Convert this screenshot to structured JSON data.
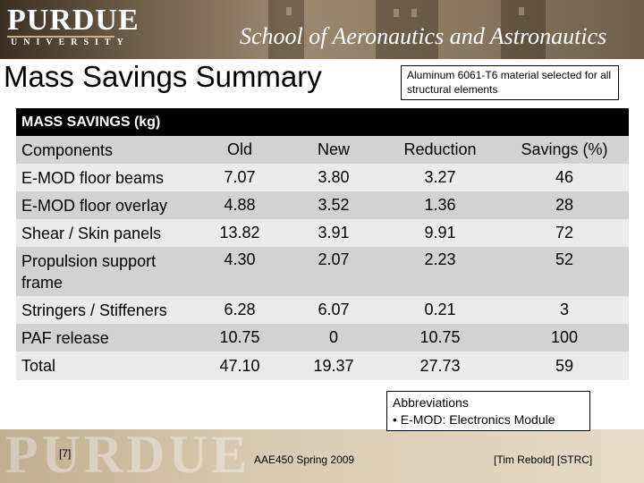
{
  "header": {
    "logo_word": "PURDUE",
    "logo_sub": "UNIVERSITY",
    "school": "School of Aeronautics and Astronautics"
  },
  "title": "Mass Savings Summary",
  "note": "Aluminum 6061-T6 material selected for all structural elements",
  "table": {
    "caption": "MASS SAVINGS (kg)",
    "columns": [
      "Components",
      "Old",
      "New",
      "Reduction",
      "Savings (%)"
    ],
    "rows": [
      [
        "E-MOD floor beams",
        "7.07",
        "3.80",
        "3.27",
        "46"
      ],
      [
        "E-MOD floor overlay",
        "4.88",
        "3.52",
        "1.36",
        "28"
      ],
      [
        "Shear / Skin panels",
        "13.82",
        "3.91",
        "9.91",
        "72"
      ],
      [
        "Propulsion support frame",
        "4.30",
        "2.07",
        "2.23",
        "52"
      ],
      [
        "Stringers / Stiffeners",
        "6.28",
        "6.07",
        "0.21",
        "3"
      ],
      [
        "PAF release",
        "10.75",
        "0",
        "10.75",
        "100"
      ],
      [
        "Total",
        "47.10",
        "19.37",
        "27.73",
        "59"
      ]
    ]
  },
  "abbreviations": {
    "title": "Abbreviations",
    "items": [
      "• E-MOD: Electronics Module"
    ]
  },
  "footer": {
    "slide_number": "[7]",
    "course": "AAE450 Spring 2009",
    "author": "[Tim Rebold] [STRC]",
    "watermark": "PURDUE"
  },
  "colors": {
    "table_header": "#000000",
    "row_dark": "#d2d2d2",
    "row_light": "#ebebeb",
    "banner": "#6f604b",
    "footer": "#d9cbb0"
  }
}
